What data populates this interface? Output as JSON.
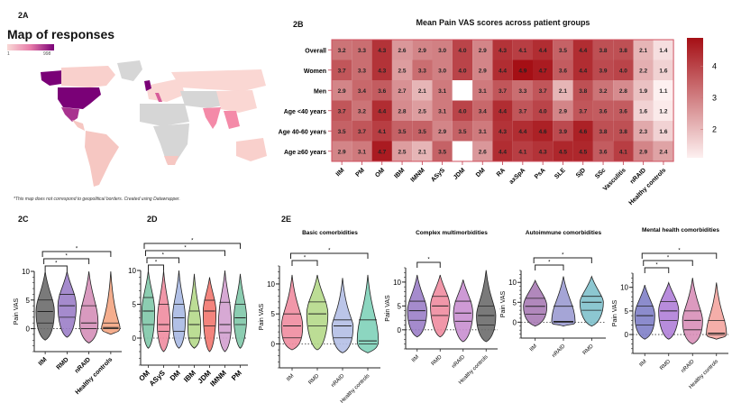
{
  "panels": {
    "a": {
      "label": "2A",
      "title": "Map of responses",
      "legend_min": "1",
      "legend_max": "998",
      "legend_colors": [
        "#f9d9d6",
        "#7a0177"
      ],
      "note": "*This map does not correspond to geopolitical borders. Created using Datawrapper."
    },
    "b": {
      "label": "2B"
    },
    "c": {
      "label": "2C"
    },
    "d": {
      "label": "2D"
    },
    "e": {
      "label": "2E"
    }
  },
  "chart_data": [
    {
      "id": "2A",
      "type": "heatmap",
      "subtype": "choropleth-map",
      "title": "Map of responses",
      "scale": {
        "min": 1,
        "max": 998
      },
      "regions": [
        {
          "name": "United States",
          "level": "high"
        },
        {
          "name": "Alaska",
          "level": "high"
        },
        {
          "name": "United Kingdom",
          "level": "high"
        },
        {
          "name": "Mexico",
          "level": "mid-high"
        },
        {
          "name": "India",
          "level": "mid"
        },
        {
          "name": "Italy",
          "level": "mid"
        },
        {
          "name": "Canada",
          "level": "low"
        },
        {
          "name": "South America",
          "level": "low"
        },
        {
          "name": "Russia",
          "level": "low"
        },
        {
          "name": "Australia",
          "level": "low"
        },
        {
          "name": "Greenland",
          "level": "none"
        },
        {
          "name": "Central Africa",
          "level": "none"
        }
      ]
    },
    {
      "id": "2B",
      "type": "heatmap",
      "title": "Mean Pain VAS scores across patient groups",
      "rows": [
        "Overall",
        "Women",
        "Men",
        "Age <40 years",
        "Age 40-60 years",
        "Age ≥60 years"
      ],
      "columns": [
        "IIM",
        "PM",
        "OM",
        "IBM",
        "IMNM",
        "ASyS",
        "JDM",
        "DM",
        "RA",
        "axSpA",
        "PsA",
        "SLE",
        "SjD",
        "SSc",
        "Vasculitis",
        "nRAID",
        "Healthy controls"
      ],
      "values": [
        [
          3.2,
          3.3,
          4.3,
          2.6,
          2.9,
          3.0,
          4.0,
          2.9,
          4.3,
          4.1,
          4.4,
          3.5,
          4.4,
          3.8,
          3.8,
          2.1,
          1.4
        ],
        [
          3.7,
          3.3,
          4.3,
          2.5,
          3.3,
          3.0,
          4.0,
          2.9,
          4.4,
          4.9,
          4.7,
          3.6,
          4.4,
          3.9,
          4.0,
          2.2,
          1.6
        ],
        [
          2.9,
          3.4,
          3.6,
          2.7,
          2.1,
          3.1,
          null,
          3.1,
          3.7,
          3.3,
          3.7,
          2.1,
          3.8,
          3.2,
          2.8,
          1.9,
          1.1
        ],
        [
          3.7,
          3.2,
          4.4,
          2.8,
          2.5,
          3.1,
          4.0,
          3.4,
          4.4,
          3.7,
          4.0,
          2.9,
          3.7,
          3.6,
          3.6,
          1.6,
          1.2
        ],
        [
          3.5,
          3.7,
          4.1,
          3.5,
          3.5,
          2.9,
          3.5,
          3.1,
          4.3,
          4.4,
          4.6,
          3.9,
          4.6,
          3.8,
          3.8,
          2.3,
          1.6
        ],
        [
          2.9,
          3.1,
          4.7,
          2.5,
          2.1,
          3.5,
          null,
          2.6,
          4.4,
          4.1,
          4.3,
          4.5,
          4.5,
          3.6,
          4.1,
          2.9,
          2.4
        ]
      ],
      "colorbar": {
        "range": [
          1.1,
          4.9
        ],
        "ticks": [
          "2",
          "3",
          "4"
        ],
        "colors": [
          "#fdf0f0",
          "#a50f15"
        ]
      }
    },
    {
      "id": "2C",
      "type": "violin",
      "ylabel": "Pain VAS",
      "yticks": [
        "0",
        "5",
        "10"
      ],
      "ylim": [
        -4,
        10
      ],
      "significance": [
        {
          "from": 0,
          "to": 1,
          "label": "*"
        },
        {
          "from": 0,
          "to": 2,
          "label": "*"
        },
        {
          "from": 0,
          "to": 3,
          "label": "*"
        }
      ],
      "groups": [
        {
          "name": "IIM",
          "color": "#6b6b6b",
          "q1": 1,
          "median": 3,
          "q3": 5,
          "min": -2,
          "max": 10
        },
        {
          "name": "RMD",
          "color": "#9b7ec8",
          "q1": 2,
          "median": 4,
          "q3": 6,
          "min": -1.5,
          "max": 10
        },
        {
          "name": "nRAID",
          "color": "#d58fb8",
          "q1": 0,
          "median": 1,
          "q3": 4,
          "min": -2.5,
          "max": 10
        },
        {
          "name": "Healthy controls",
          "color": "#f4a582",
          "q1": 0,
          "median": 0.2,
          "q3": 1,
          "min": -1,
          "max": 10
        }
      ]
    },
    {
      "id": "2D",
      "type": "violin",
      "ylabel": "Pain VAS",
      "yticks": [
        "0",
        "5",
        "10"
      ],
      "ylim": [
        -4,
        10
      ],
      "significance": [
        {
          "from": 0,
          "to": 1,
          "label": "*"
        },
        {
          "from": 0,
          "to": 2,
          "label": "*"
        },
        {
          "from": 0,
          "to": 5,
          "label": "*"
        },
        {
          "from": 0,
          "to": 6,
          "label": "*"
        }
      ],
      "groups": [
        {
          "name": "OM",
          "color": "#7fc8a9",
          "q1": 2,
          "median": 4,
          "q3": 6,
          "min": -1.5,
          "max": 10
        },
        {
          "name": "ASyS",
          "color": "#f08ca0",
          "q1": 1,
          "median": 2,
          "q3": 5,
          "min": -2,
          "max": 10
        },
        {
          "name": "DM",
          "color": "#a9b9e3",
          "q1": 1,
          "median": 3,
          "q3": 5,
          "min": -1.5,
          "max": 10
        },
        {
          "name": "IBM",
          "color": "#b5d98a",
          "q1": 0,
          "median": 2,
          "q3": 4,
          "min": -1.5,
          "max": 9.5
        },
        {
          "name": "JDM",
          "color": "#f2776f",
          "q1": 1.8,
          "median": 4,
          "q3": 5.6,
          "min": -2,
          "max": 9
        },
        {
          "name": "IMNM",
          "color": "#d3a0cf",
          "q1": 0.8,
          "median": 2,
          "q3": 5.3,
          "min": -2,
          "max": 10
        },
        {
          "name": "PM",
          "color": "#7fc8a9",
          "q1": 2,
          "median": 3,
          "q3": 5,
          "min": -1.5,
          "max": 9.5
        }
      ]
    },
    {
      "id": "2E-basic",
      "type": "violin",
      "title": "Basic comorbidities",
      "ylabel": "Pain VAS",
      "yticks": [
        "0",
        "5",
        "10"
      ],
      "ylim": [
        -4,
        13
      ],
      "significance": [
        {
          "from": 0,
          "to": 1,
          "label": "*"
        },
        {
          "from": 0,
          "to": 3,
          "label": "*"
        }
      ],
      "groups": [
        {
          "name": "IIM",
          "color": "#f08ca0",
          "q1": 1,
          "median": 3,
          "q3": 5,
          "min": -1,
          "max": 11.5
        },
        {
          "name": "RMD",
          "color": "#b5d98a",
          "q1": 3,
          "median": 5,
          "q3": 7,
          "min": -1,
          "max": 11.5
        },
        {
          "name": "nRAID",
          "color": "#b4bfe6",
          "q1": 1,
          "median": 3,
          "q3": 4,
          "min": -1.5,
          "max": 11
        },
        {
          "name": "Healthy controls",
          "color": "#7fd1b9",
          "q1": 0,
          "median": 0.5,
          "q3": 4,
          "min": -1.5,
          "max": 11.5
        }
      ]
    },
    {
      "id": "2E-complex",
      "type": "violin",
      "title": "Complex multimorbidities",
      "ylabel": "Pain VAS",
      "yticks": [
        "0",
        "5",
        "10"
      ],
      "ylim": [
        -4,
        13
      ],
      "significance": [
        {
          "from": 0,
          "to": 1,
          "label": "*"
        }
      ],
      "groups": [
        {
          "name": "IIM",
          "color": "#9b7ec8",
          "q1": 2,
          "median": 4,
          "q3": 6,
          "min": -1.5,
          "max": 11.5
        },
        {
          "name": "RMD",
          "color": "#f08ca0",
          "q1": 3,
          "median": 5,
          "q3": 7,
          "min": -1.5,
          "max": 11.5
        },
        {
          "name": "nRAID",
          "color": "#c98fd0",
          "q1": 1.8,
          "median": 3.5,
          "q3": 6,
          "min": -2.5,
          "max": 10.5
        },
        {
          "name": "Healthy controls",
          "color": "#6b6b6b",
          "q1": 1,
          "median": 3,
          "q3": 5,
          "min": -2.5,
          "max": 12.5
        }
      ]
    },
    {
      "id": "2E-autoimmune",
      "type": "violin",
      "title": "Autoimmune comorbidities",
      "ylabel": "Pain VAS",
      "yticks": [
        "0",
        "5",
        "10"
      ],
      "ylim": [
        -4,
        13
      ],
      "significance": [
        {
          "from": 0,
          "to": 1,
          "label": "*"
        },
        {
          "from": 0,
          "to": 2,
          "label": "*"
        }
      ],
      "groups": [
        {
          "name": "IIM",
          "color": "#a97bb5",
          "q1": 2,
          "median": 4,
          "q3": 6,
          "min": -1,
          "max": 10.5
        },
        {
          "name": "nRAID",
          "color": "#9b9bd1",
          "q1": 0,
          "median": 0.2,
          "q3": 4,
          "min": -1,
          "max": 11.5
        },
        {
          "name": "RMD",
          "color": "#7fc1cc",
          "q1": 3,
          "median": 5,
          "q3": 6.5,
          "min": -1,
          "max": 11.5
        }
      ]
    },
    {
      "id": "2E-mental",
      "type": "violin",
      "title": "Mental health comorbidities",
      "ylabel": "Pain VAS",
      "yticks": [
        "0",
        "5",
        "10"
      ],
      "ylim": [
        -4,
        13
      ],
      "significance": [
        {
          "from": 0,
          "to": 1,
          "label": "*"
        },
        {
          "from": 0,
          "to": 2,
          "label": "*"
        },
        {
          "from": 0,
          "to": 3,
          "label": "*"
        }
      ],
      "groups": [
        {
          "name": "IIM",
          "color": "#7f7fc8",
          "q1": 2,
          "median": 4,
          "q3": 6,
          "min": -1,
          "max": 10.5
        },
        {
          "name": "RMD",
          "color": "#b07fd8",
          "q1": 3,
          "median": 5,
          "q3": 7,
          "min": -1,
          "max": 11
        },
        {
          "name": "nRAID",
          "color": "#d88fb8",
          "q1": 1,
          "median": 3,
          "q3": 5,
          "min": -2,
          "max": 12
        },
        {
          "name": "Healthy controls",
          "color": "#f4a5a0",
          "q1": 0,
          "median": 0.3,
          "q3": 3,
          "min": -1,
          "max": 11
        }
      ]
    }
  ]
}
